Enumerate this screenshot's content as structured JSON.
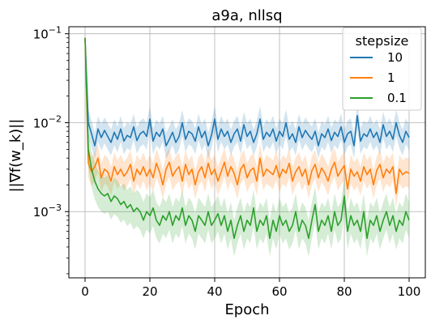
{
  "chart_data": {
    "type": "line",
    "title": "a9a, nllsq",
    "xlabel": "Epoch",
    "ylabel": "||∇f(w_k)||",
    "xlim": [
      -5,
      105
    ],
    "ylim": [
      0.00018,
      0.12
    ],
    "yscale": "log",
    "grid": true,
    "legend": {
      "title": "stepsize",
      "placement": "top-right"
    },
    "x_ticks": [
      0,
      20,
      40,
      60,
      80,
      100
    ],
    "x_tick_labels": [
      "0",
      "20",
      "40",
      "60",
      "80",
      "100"
    ],
    "y_ticks": [
      0.001,
      0.01,
      0.1
    ],
    "y_tick_labels": [
      {
        "base": "10",
        "exp": "−3"
      },
      {
        "base": "10",
        "exp": "−2"
      },
      {
        "base": "10",
        "exp": "−1"
      }
    ],
    "x": [
      0,
      1,
      2,
      3,
      4,
      5,
      6,
      7,
      8,
      9,
      10,
      11,
      12,
      13,
      14,
      15,
      16,
      17,
      18,
      19,
      20,
      21,
      22,
      23,
      24,
      25,
      26,
      27,
      28,
      29,
      30,
      31,
      32,
      33,
      34,
      35,
      36,
      37,
      38,
      39,
      40,
      41,
      42,
      43,
      44,
      45,
      46,
      47,
      48,
      49,
      50,
      51,
      52,
      53,
      54,
      55,
      56,
      57,
      58,
      59,
      60,
      61,
      62,
      63,
      64,
      65,
      66,
      67,
      68,
      69,
      70,
      71,
      72,
      73,
      74,
      75,
      76,
      77,
      78,
      79,
      80,
      81,
      82,
      83,
      84,
      85,
      86,
      87,
      88,
      89,
      90,
      91,
      92,
      93,
      94,
      95,
      96,
      97,
      98,
      99,
      100
    ],
    "series": [
      {
        "name": "10",
        "color": "#1f77b4",
        "values": [
          0.09,
          0.01,
          0.0075,
          0.0055,
          0.0085,
          0.0068,
          0.0082,
          0.007,
          0.006,
          0.0078,
          0.0065,
          0.0085,
          0.0062,
          0.0072,
          0.0068,
          0.009,
          0.0063,
          0.0075,
          0.008,
          0.007,
          0.011,
          0.0062,
          0.0078,
          0.007,
          0.0085,
          0.0055,
          0.0065,
          0.0078,
          0.006,
          0.007,
          0.01,
          0.0065,
          0.008,
          0.0075,
          0.0062,
          0.009,
          0.0068,
          0.008,
          0.0055,
          0.0072,
          0.011,
          0.0065,
          0.0085,
          0.007,
          0.008,
          0.006,
          0.0075,
          0.0085,
          0.0062,
          0.0095,
          0.007,
          0.008,
          0.006,
          0.0075,
          0.011,
          0.0065,
          0.0078,
          0.007,
          0.0085,
          0.0062,
          0.008,
          0.007,
          0.01,
          0.0065,
          0.0075,
          0.006,
          0.009,
          0.0068,
          0.0082,
          0.0072,
          0.0065,
          0.008,
          0.0055,
          0.0075,
          0.0068,
          0.0085,
          0.0063,
          0.0078,
          0.007,
          0.009,
          0.006,
          0.0075,
          0.008,
          0.0055,
          0.012,
          0.0062,
          0.0075,
          0.007,
          0.0085,
          0.0068,
          0.0078,
          0.006,
          0.0095,
          0.007,
          0.008,
          0.0065,
          0.01,
          0.0072,
          0.006,
          0.008,
          0.0068
        ],
        "band_factor": 1.4
      },
      {
        "name": "1",
        "color": "#ff7f0e",
        "values": [
          0.09,
          0.0035,
          0.0028,
          0.0032,
          0.004,
          0.0024,
          0.003,
          0.0028,
          0.0022,
          0.0032,
          0.0026,
          0.003,
          0.0025,
          0.0028,
          0.0034,
          0.0022,
          0.003,
          0.0026,
          0.0032,
          0.0025,
          0.003,
          0.0024,
          0.0035,
          0.0028,
          0.002,
          0.003,
          0.0036,
          0.0025,
          0.0029,
          0.0032,
          0.0022,
          0.0034,
          0.0026,
          0.003,
          0.002,
          0.0028,
          0.0032,
          0.0024,
          0.0035,
          0.0026,
          0.003,
          0.0022,
          0.0028,
          0.0036,
          0.0025,
          0.0032,
          0.0027,
          0.002,
          0.003,
          0.0034,
          0.0024,
          0.0029,
          0.0031,
          0.0022,
          0.004,
          0.0025,
          0.003,
          0.0028,
          0.0026,
          0.0033,
          0.0024,
          0.003,
          0.0027,
          0.0035,
          0.0022,
          0.0028,
          0.0032,
          0.0025,
          0.003,
          0.002,
          0.0029,
          0.0034,
          0.0024,
          0.0031,
          0.0027,
          0.0022,
          0.003,
          0.0036,
          0.0025,
          0.0029,
          0.0033,
          0.0018,
          0.003,
          0.0025,
          0.0028,
          0.0022,
          0.0032,
          0.0026,
          0.003,
          0.002,
          0.0029,
          0.0034,
          0.0024,
          0.003,
          0.0027,
          0.0032,
          0.0016,
          0.003,
          0.0026,
          0.0028,
          0.0027
        ],
        "band_factor": 1.45
      },
      {
        "name": "0.1",
        "color": "#2ca02c",
        "values": [
          0.09,
          0.005,
          0.003,
          0.0022,
          0.0018,
          0.0016,
          0.0015,
          0.0016,
          0.0013,
          0.0015,
          0.0014,
          0.0012,
          0.0013,
          0.0011,
          0.0012,
          0.001,
          0.0011,
          0.001,
          0.0008,
          0.001,
          0.0009,
          0.0011,
          0.0008,
          0.0007,
          0.0009,
          0.0008,
          0.001,
          0.0007,
          0.0009,
          0.0008,
          0.0011,
          0.0007,
          0.0009,
          0.0008,
          0.0006,
          0.0009,
          0.0008,
          0.0007,
          0.001,
          0.0007,
          0.0008,
          0.00095,
          0.0007,
          0.0009,
          0.0006,
          0.0008,
          0.0005,
          0.0007,
          0.0009,
          0.0006,
          0.0008,
          0.0007,
          0.0011,
          0.0006,
          0.0008,
          0.0007,
          0.0009,
          0.0005,
          0.0008,
          0.0006,
          0.0009,
          0.0007,
          0.0008,
          0.0006,
          0.0007,
          0.001,
          0.0006,
          0.0008,
          0.0007,
          0.0005,
          0.0008,
          0.0012,
          0.0006,
          0.0008,
          0.0007,
          0.0009,
          0.0006,
          0.001,
          0.0007,
          0.0008,
          0.0015,
          0.0006,
          0.0009,
          0.0007,
          0.0008,
          0.0006,
          0.001,
          0.0005,
          0.0008,
          0.0007,
          0.0009,
          0.0006,
          0.0008,
          0.001,
          0.0007,
          0.0009,
          0.0006,
          0.0008,
          0.0007,
          0.001,
          0.0008
        ],
        "band_factor": 1.6
      }
    ]
  }
}
